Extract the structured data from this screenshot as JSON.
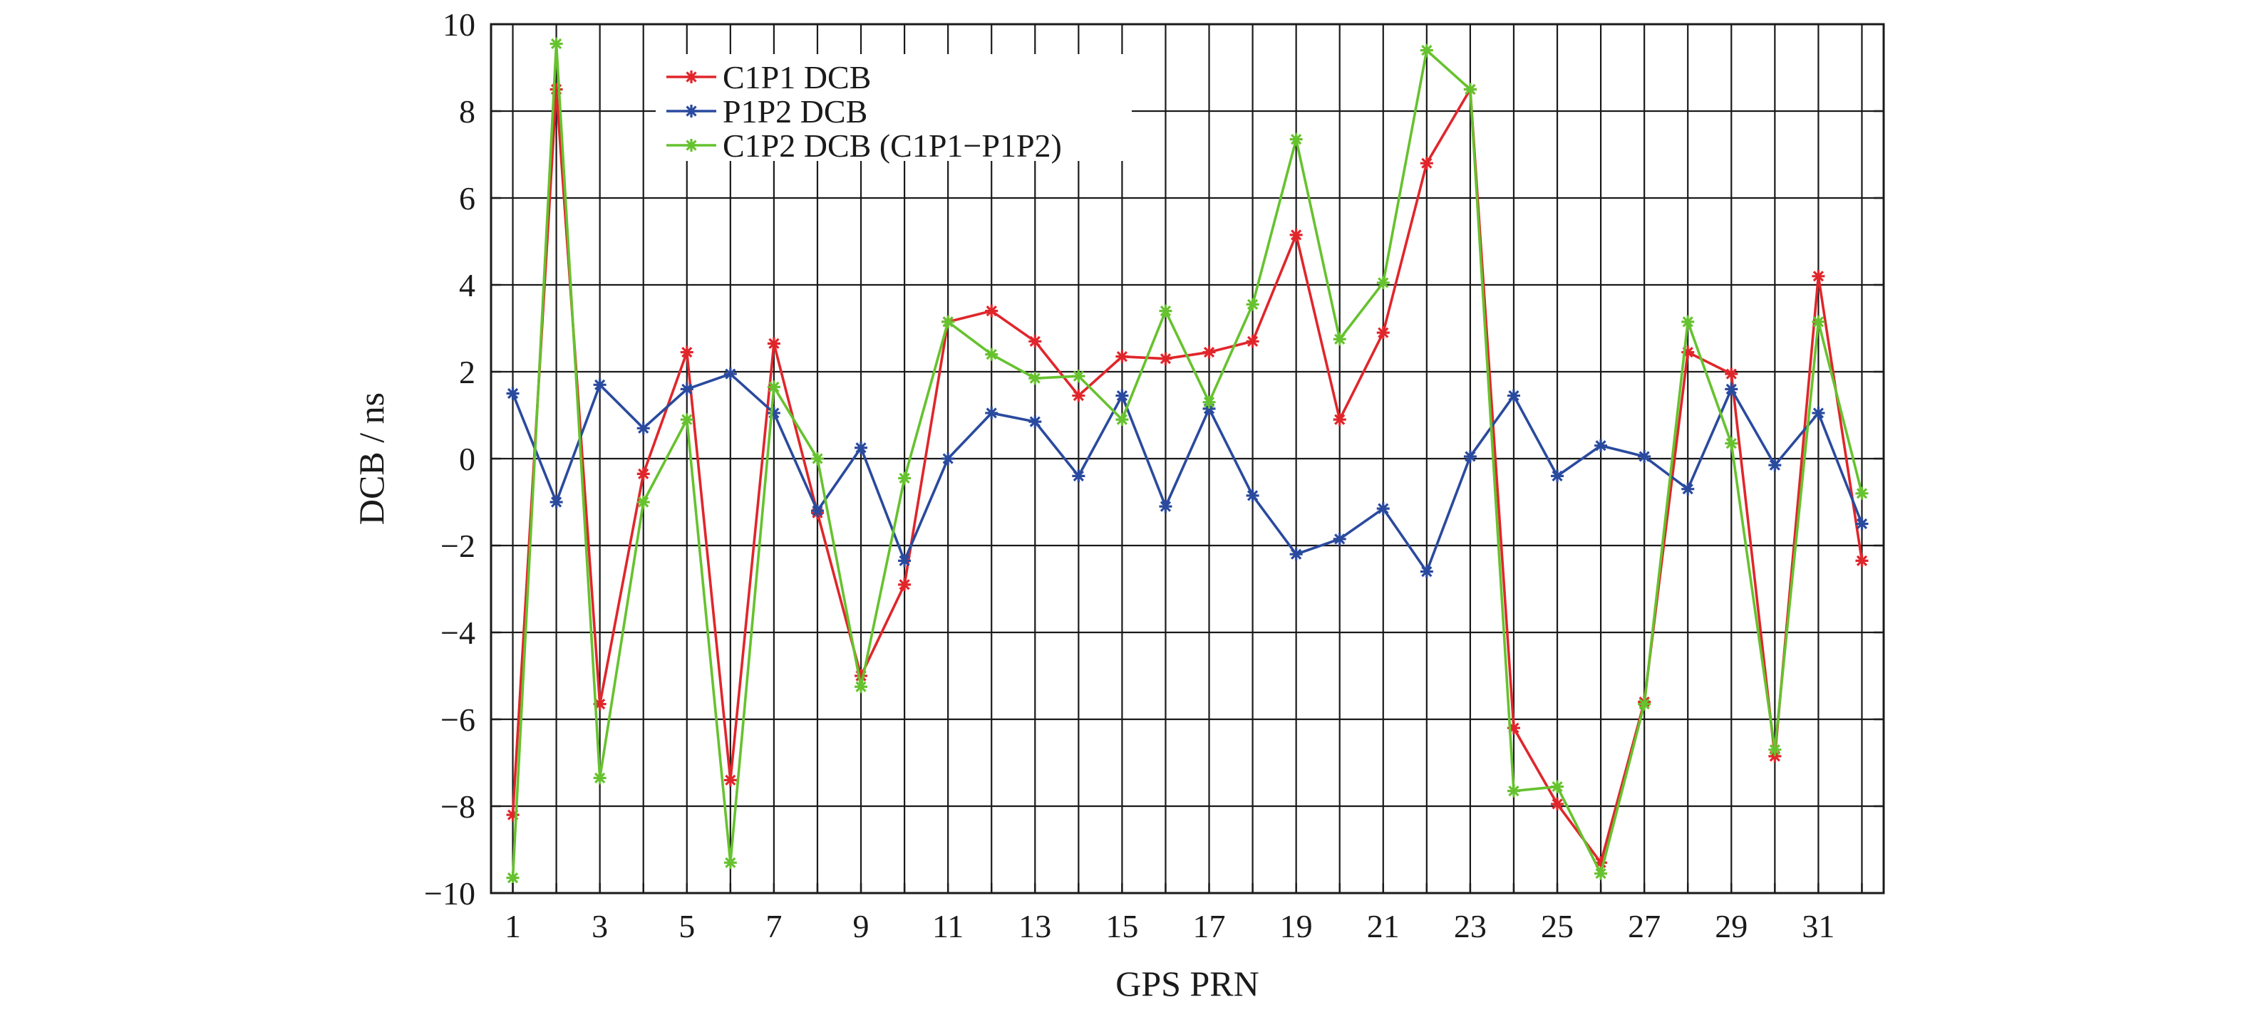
{
  "chart_data": {
    "type": "line",
    "title": "",
    "xlabel": "GPS PRN",
    "ylabel": "DCB / ns",
    "xlim": [
      0.5,
      32.5
    ],
    "ylim": [
      -10,
      10
    ],
    "grid": true,
    "legend_position": "top-left",
    "x": [
      1,
      2,
      3,
      4,
      5,
      6,
      7,
      8,
      9,
      10,
      11,
      12,
      13,
      14,
      15,
      16,
      17,
      18,
      19,
      20,
      21,
      22,
      23,
      24,
      25,
      26,
      27,
      28,
      29,
      30,
      31,
      32
    ],
    "x_tick_labels": [
      "1",
      "3",
      "5",
      "7",
      "9",
      "11",
      "13",
      "15",
      "17",
      "19",
      "21",
      "23",
      "25",
      "27",
      "29",
      "31"
    ],
    "y_tick_labels": [
      "10",
      "8",
      "6",
      "4",
      "2",
      "0",
      "−2",
      "−4",
      "−6",
      "−8",
      "−10"
    ],
    "series": [
      {
        "name": "C1P1 DCB",
        "color": "#e0262b",
        "values": [
          -8.2,
          8.5,
          -5.65,
          -0.35,
          2.45,
          -7.4,
          2.65,
          -1.25,
          -5.0,
          -2.9,
          3.15,
          3.4,
          2.7,
          1.45,
          2.35,
          2.3,
          2.45,
          2.7,
          5.15,
          0.9,
          2.9,
          6.8,
          8.5,
          -6.2,
          -7.95,
          -9.3,
          -5.6,
          2.45,
          1.95,
          -6.85,
          4.2,
          -2.35
        ]
      },
      {
        "name": "P1P2 DCB",
        "color": "#2a4a9e",
        "values": [
          1.5,
          -1.0,
          1.7,
          0.7,
          1.6,
          1.95,
          1.05,
          -1.2,
          0.25,
          -2.35,
          0.0,
          1.05,
          0.85,
          -0.4,
          1.45,
          -1.1,
          1.15,
          -0.85,
          -2.2,
          -1.85,
          -1.15,
          -2.6,
          0.05,
          1.45,
          -0.4,
          0.3,
          0.05,
          -0.7,
          1.6,
          -0.15,
          1.05,
          -1.5
        ]
      },
      {
        "name": "C1P2 DCB (C1P1−P1P2)",
        "color": "#66c22e",
        "values": [
          -9.65,
          9.55,
          -7.35,
          -1.0,
          0.9,
          -9.3,
          1.65,
          0.0,
          -5.25,
          -0.45,
          3.15,
          2.4,
          1.85,
          1.9,
          0.9,
          3.4,
          1.3,
          3.55,
          7.35,
          2.75,
          4.05,
          9.4,
          8.5,
          -7.65,
          -7.55,
          -9.55,
          -5.65,
          3.15,
          0.35,
          -6.7,
          3.15,
          -0.8
        ]
      }
    ]
  }
}
